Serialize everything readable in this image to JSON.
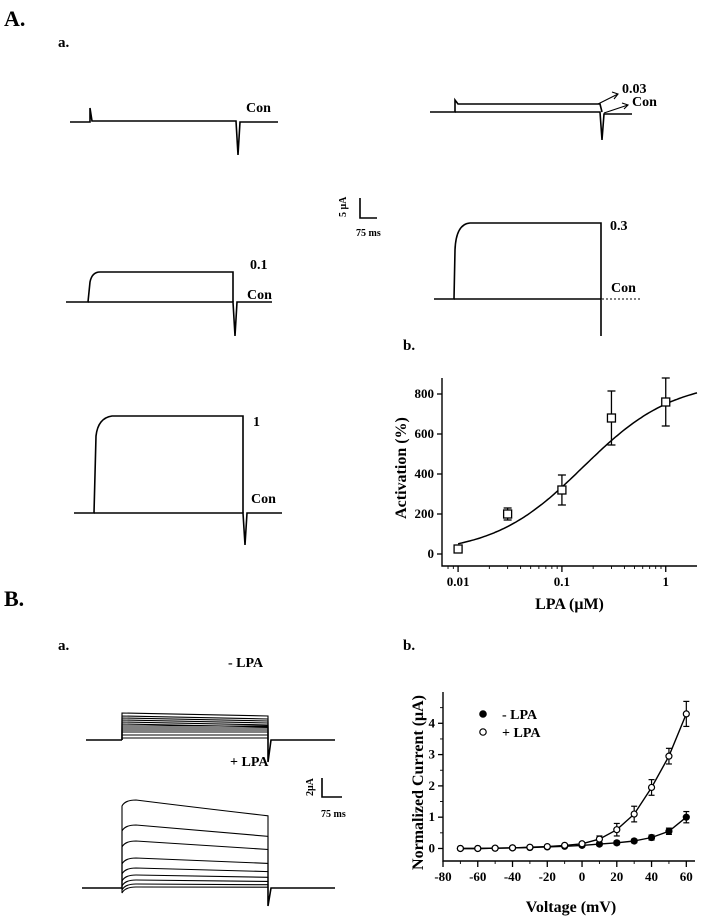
{
  "panels": {
    "A": "A.",
    "B": "B.",
    "Aa": "a.",
    "Ab": "b.",
    "Ba": "a.",
    "Bb": "b."
  },
  "traces_A": {
    "con_only": "Con",
    "c003": "0.03",
    "c003_con": "Con",
    "c01": "0.1",
    "c01_con": "Con",
    "c03": "0.3",
    "c03_con": "Con",
    "c1": "1",
    "c1_con": "Con",
    "scale_y": "5 μA",
    "scale_x": "75 ms"
  },
  "traces_B": {
    "minus": "- LPA",
    "plus": "+ LPA",
    "scale_y": "2μA",
    "scale_x": "75 ms"
  },
  "chart_data": [
    {
      "type": "scatter",
      "xscale": "log",
      "xlabel": "LPA (μM)",
      "ylabel": "Activation (%)",
      "xlim": [
        0.007,
        2
      ],
      "ylim": [
        -60,
        880
      ],
      "xticks": [
        0.01,
        0.1,
        1
      ],
      "xtick_labels": [
        "0.01",
        "0.1",
        "1"
      ],
      "yticks": [
        0,
        200,
        400,
        600,
        800
      ],
      "marker": "open-square",
      "series": [
        {
          "x": [
            0.01,
            0.03,
            0.1,
            0.3,
            1
          ],
          "y": [
            25,
            200,
            320,
            680,
            760
          ],
          "err": [
            15,
            30,
            75,
            135,
            120
          ]
        }
      ],
      "fit": {
        "type": "hill",
        "bottom": 0,
        "top": 870,
        "ec50": 0.16,
        "hill": 1.0
      }
    },
    {
      "type": "line",
      "xlabel": "Voltage (mV)",
      "ylabel": "Normalized Current (μA)",
      "xlim": [
        -80,
        65
      ],
      "ylim": [
        -0.4,
        5
      ],
      "xticks": [
        -80,
        -60,
        -40,
        -20,
        0,
        20,
        40,
        60
      ],
      "yticks": [
        0,
        1,
        2,
        3,
        4
      ],
      "legend": "top-left",
      "x": [
        -70,
        -60,
        -50,
        -40,
        -30,
        -20,
        -10,
        0,
        10,
        20,
        30,
        40,
        50,
        60
      ],
      "series": [
        {
          "name": "- LPA",
          "marker": "filled-circle",
          "values": [
            0,
            0,
            0.01,
            0.02,
            0.03,
            0.05,
            0.07,
            0.1,
            0.14,
            0.18,
            0.24,
            0.35,
            0.55,
            1.0
          ],
          "err": [
            0,
            0,
            0,
            0,
            0,
            0,
            0,
            0,
            0.05,
            0.06,
            0.06,
            0.08,
            0.1,
            0.18
          ]
        },
        {
          "name": "+ LPA",
          "marker": "open-circle",
          "values": [
            0,
            0,
            0.01,
            0.02,
            0.04,
            0.06,
            0.1,
            0.15,
            0.3,
            0.6,
            1.1,
            1.95,
            2.95,
            4.3
          ],
          "err": [
            0,
            0,
            0,
            0,
            0,
            0,
            0,
            0.05,
            0.1,
            0.2,
            0.25,
            0.25,
            0.25,
            0.4
          ]
        }
      ]
    }
  ]
}
